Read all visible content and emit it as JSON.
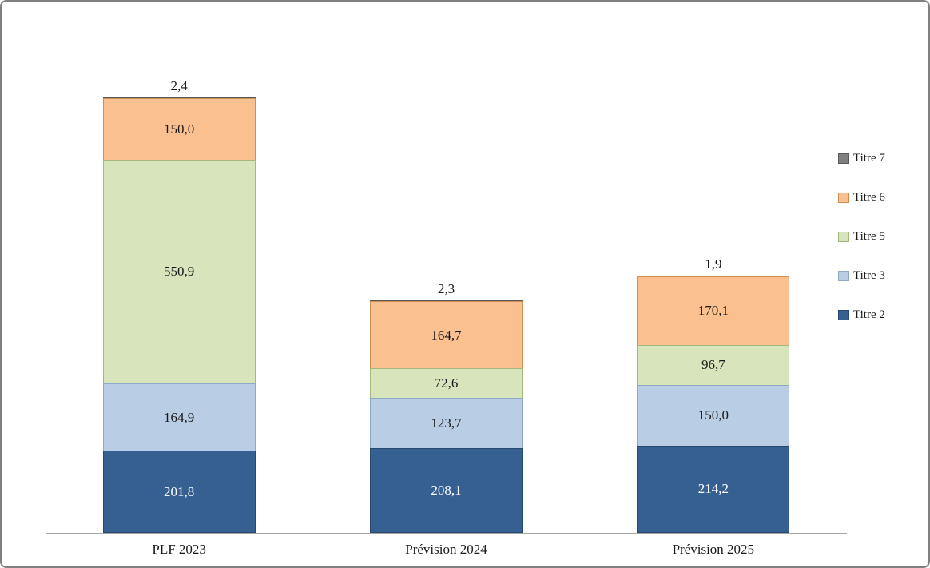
{
  "chart": {
    "background": "#ffffff",
    "frame_border_color": "#808080",
    "axis_line_color": "#a6a6a6",
    "text_color": "#1a1a1a"
  },
  "chart_data": {
    "type": "bar",
    "subtype": "stacked",
    "title": "",
    "xlabel": "",
    "ylabel": "",
    "grid": false,
    "ylim": [
      0,
      1070
    ],
    "categories": [
      "PLF 2023",
      "Prévision 2024",
      "Prévision 2025"
    ],
    "series": [
      {
        "name": "Titre 2",
        "values": [
          201.8,
          208.1,
          214.2
        ],
        "labels": [
          "201,8",
          "208,1",
          "214,2"
        ],
        "color": "#376092",
        "border_color": "#27496e",
        "label_color": "#ffffff",
        "label_position": "inside"
      },
      {
        "name": "Titre 3",
        "values": [
          164.9,
          123.7,
          150.0
        ],
        "labels": [
          "164,9",
          "123,7",
          "150,0"
        ],
        "color": "#b9cde5",
        "border_color": "#8fa8c8",
        "label_color": "#1a1a1a",
        "label_position": "inside"
      },
      {
        "name": "Titre 5",
        "values": [
          550.9,
          72.6,
          96.7
        ],
        "labels": [
          "550,9",
          "72,6",
          "96,7"
        ],
        "color": "#d7e4bc",
        "border_color": "#a3b87c",
        "label_color": "#1a1a1a",
        "label_position": "inside"
      },
      {
        "name": "Titre 6",
        "values": [
          150.0,
          164.7,
          170.1
        ],
        "labels": [
          "150,0",
          "164,7",
          "170,1"
        ],
        "color": "#fac090",
        "border_color": "#ce8e54",
        "label_color": "#1a1a1a",
        "label_position": "inside"
      },
      {
        "name": "Titre 7",
        "values": [
          2.4,
          2.3,
          1.9
        ],
        "labels": [
          "2,4",
          "2,3",
          "1,9"
        ],
        "color": "#808080",
        "border_color": "#595959",
        "label_color": "#1a1a1a",
        "label_position": "above"
      }
    ],
    "legend": {
      "position": "right",
      "order": [
        "Titre 7",
        "Titre 6",
        "Titre 5",
        "Titre 3",
        "Titre 2"
      ]
    }
  }
}
